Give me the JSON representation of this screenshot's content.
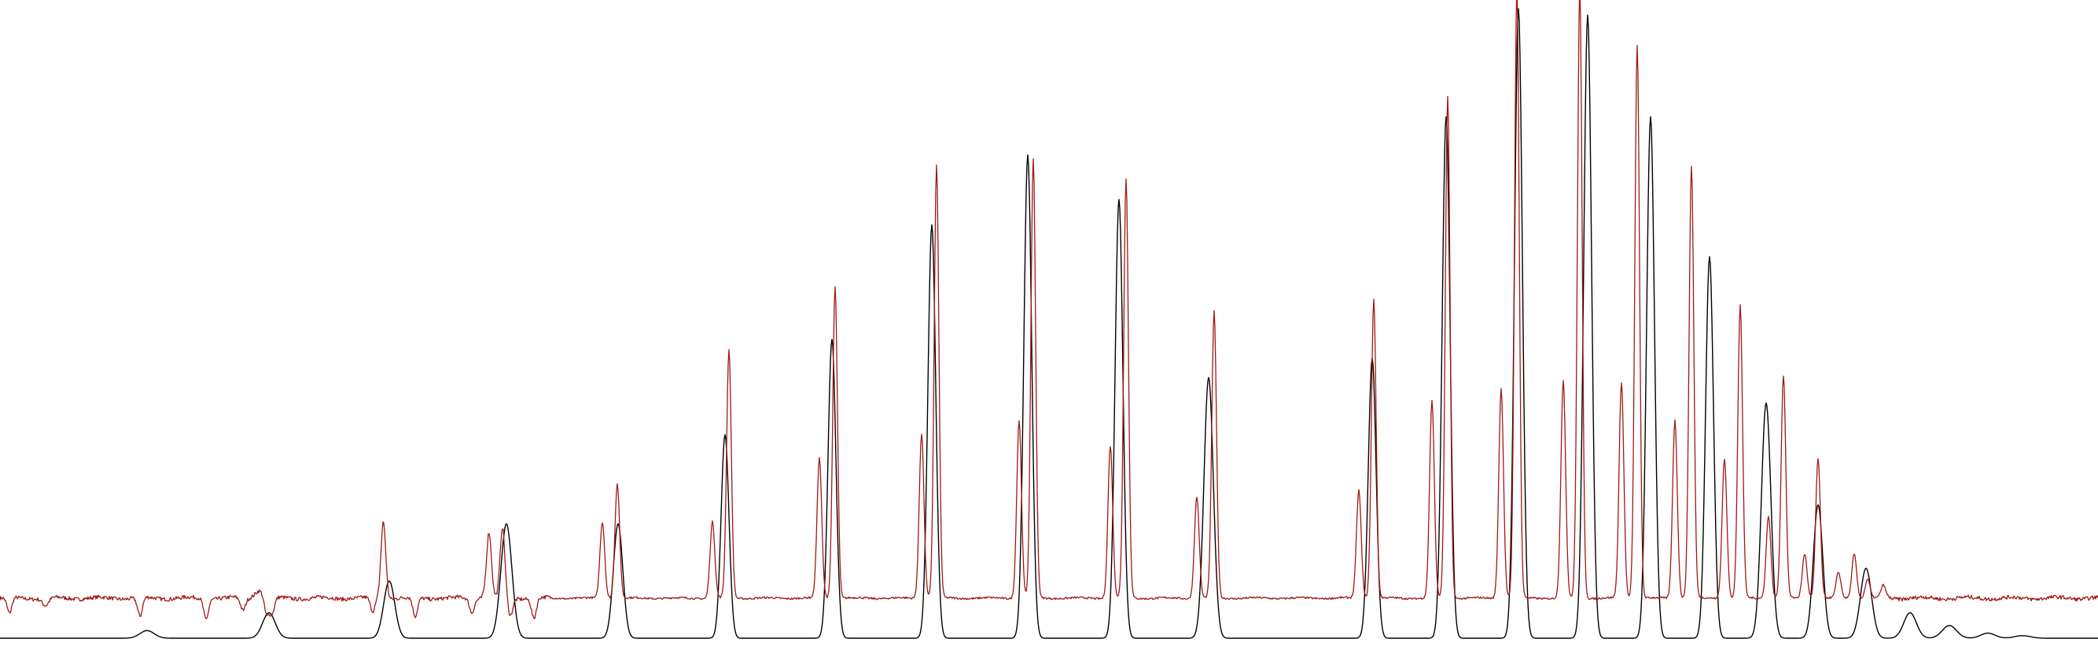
{
  "chart_data": {
    "type": "line",
    "x_range": [
      0,
      2668
    ],
    "ylim": [
      0,
      1
    ],
    "grid": false,
    "legend": "none",
    "series": [
      {
        "color": "#000000",
        "peaks": [
          [
            187,
            0.012,
            9
          ],
          [
            342,
            0.04,
            8
          ],
          [
            495,
            0.09,
            7
          ],
          [
            644,
            0.18,
            7
          ],
          [
            786,
            0.18,
            6
          ],
          [
            922,
            0.32,
            5
          ],
          [
            1058,
            0.47,
            5
          ],
          [
            1185,
            0.65,
            5
          ],
          [
            1307,
            0.76,
            5
          ],
          [
            1423,
            0.69,
            5
          ],
          [
            1537,
            0.41,
            6
          ],
          [
            1745,
            0.44,
            5
          ],
          [
            1839,
            0.82,
            5
          ],
          [
            1931,
            0.99,
            5
          ],
          [
            2019,
            0.98,
            5
          ],
          [
            2099,
            0.82,
            5
          ],
          [
            2174,
            0.6,
            5
          ],
          [
            2246,
            0.37,
            6
          ],
          [
            2312,
            0.21,
            6
          ],
          [
            2373,
            0.11,
            7
          ],
          [
            2429,
            0.04,
            8
          ],
          [
            2479,
            0.02,
            9
          ],
          [
            2528,
            0.008,
            9
          ],
          [
            2572,
            0.004,
            10
          ]
        ]
      },
      {
        "color": "#a01818",
        "baseline": 0.063,
        "peaks": [
          [
            488,
            0.065,
            3
          ],
          [
            622,
            0.09,
            3
          ],
          [
            639,
            0.11,
            3
          ],
          [
            766,
            0.12,
            3
          ],
          [
            785,
            0.18,
            3
          ],
          [
            906,
            0.12,
            3
          ],
          [
            927,
            0.39,
            3
          ],
          [
            1042,
            0.22,
            3
          ],
          [
            1062,
            0.49,
            3
          ],
          [
            1172,
            0.26,
            3
          ],
          [
            1191,
            0.68,
            3
          ],
          [
            1296,
            0.28,
            3
          ],
          [
            1314,
            0.69,
            3
          ],
          [
            1412,
            0.24,
            3
          ],
          [
            1432,
            0.66,
            3
          ],
          [
            1522,
            0.16,
            3
          ],
          [
            1544,
            0.45,
            3
          ],
          [
            1728,
            0.17,
            3
          ],
          [
            1747,
            0.47,
            3
          ],
          [
            1821,
            0.31,
            3
          ],
          [
            1841,
            0.79,
            3
          ],
          [
            1909,
            0.33,
            3
          ],
          [
            1929,
            0.96,
            3
          ],
          [
            1988,
            0.34,
            3
          ],
          [
            2009,
            0.96,
            3
          ],
          [
            2062,
            0.34,
            3
          ],
          [
            2082,
            0.87,
            3
          ],
          [
            2130,
            0.28,
            3
          ],
          [
            2151,
            0.68,
            3
          ],
          [
            2193,
            0.22,
            3
          ],
          [
            2213,
            0.46,
            3
          ],
          [
            2249,
            0.13,
            3
          ],
          [
            2268,
            0.35,
            3
          ],
          [
            2295,
            0.07,
            3
          ],
          [
            2312,
            0.22,
            3
          ],
          [
            2338,
            0.04,
            3
          ],
          [
            2358,
            0.07,
            3
          ],
          [
            2375,
            0.03,
            3
          ],
          [
            2395,
            0.02,
            3
          ]
        ],
        "dips": [
          [
            12,
            -0.025,
            3
          ],
          [
            58,
            -0.012,
            4
          ],
          [
            178,
            -0.03,
            3
          ],
          [
            262,
            -0.032,
            3
          ],
          [
            309,
            -0.02,
            3
          ],
          [
            339,
            -0.03,
            3
          ],
          [
            346,
            -0.025,
            3
          ],
          [
            474,
            -0.022,
            3
          ],
          [
            528,
            -0.03,
            3
          ],
          [
            600,
            -0.022,
            3
          ],
          [
            649,
            -0.028,
            3
          ],
          [
            679,
            -0.032,
            3
          ]
        ],
        "bumps": [
          [
            330,
            0.013,
            6
          ],
          [
            487,
            0.058,
            3
          ],
          [
            620,
            0.015,
            4
          ]
        ]
      }
    ]
  }
}
